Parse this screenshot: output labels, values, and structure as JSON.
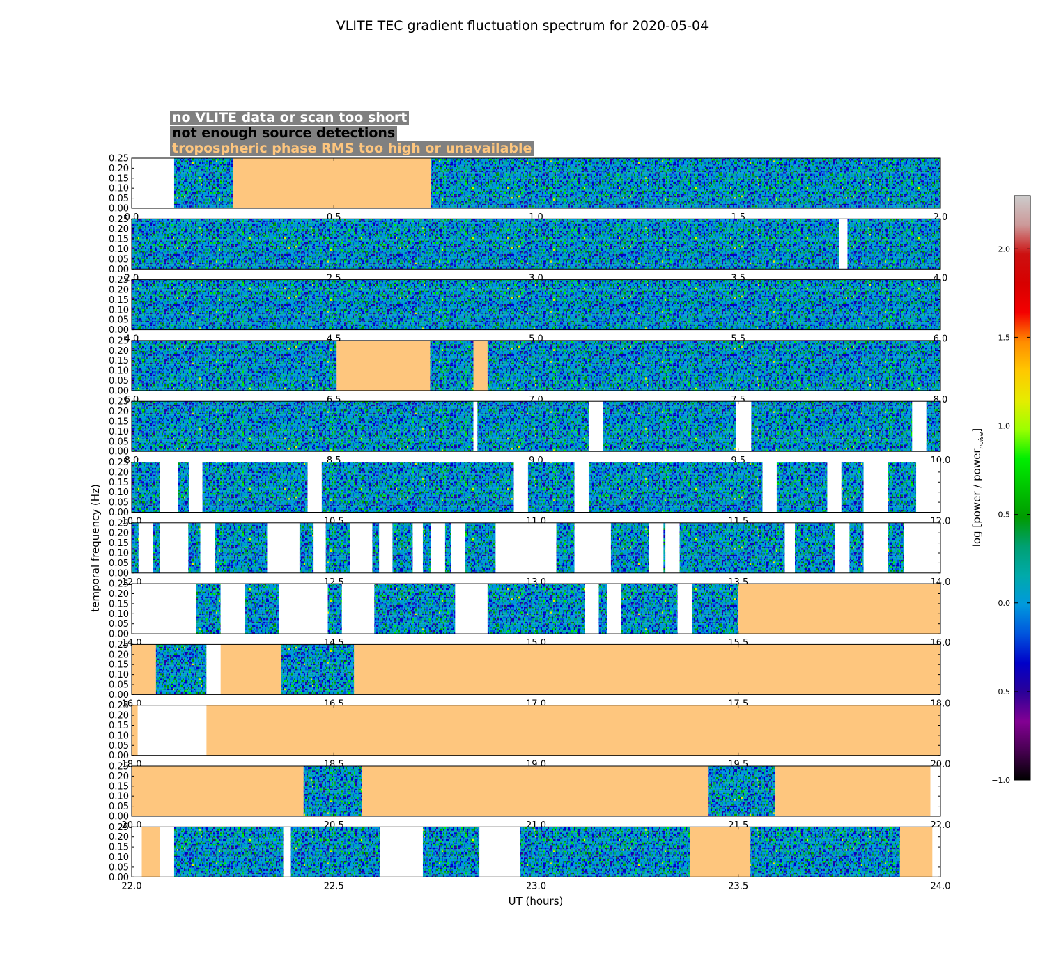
{
  "chart_data": {
    "type": "heatmap",
    "title": "VLITE TEC gradient fluctuation spectrum for 2020-05-04",
    "xlabel": "UT (hours)",
    "ylabel": "temporal frequency (Hz)",
    "ylim": [
      0,
      0.25
    ],
    "y_ticks": [
      "0.00",
      "0.05",
      "0.10",
      "0.15",
      "0.20",
      "0.25"
    ],
    "colorbar": {
      "label": "log [power / power",
      "label_subscript": "noise",
      "label_suffix": "]",
      "range": [
        -1.0,
        2.3
      ],
      "ticks": [
        "−1.0",
        "−0.5",
        "0.0",
        "0.5",
        "1.0",
        "1.5",
        "2.0"
      ],
      "colormap": "nipy_spectral"
    },
    "flag_legend": [
      {
        "label": "no VLITE data or scan too short",
        "color": "#ffffff"
      },
      {
        "label": "not enough source detections",
        "color": "#000000"
      },
      {
        "label": "tropospheric phase RMS too high or unavailable",
        "color": "#fec67e"
      }
    ],
    "panels": [
      {
        "x_range": [
          0.0,
          2.0
        ],
        "x_ticks": [
          "0.0",
          "0.5",
          "1.0",
          "1.5",
          "2.0"
        ],
        "segments": [
          [
            0.0,
            0.105,
            "nodata"
          ],
          [
            0.105,
            0.25,
            "data"
          ],
          [
            0.25,
            0.74,
            "trop"
          ],
          [
            0.74,
            2.0,
            "data"
          ]
        ]
      },
      {
        "x_range": [
          2.0,
          4.0
        ],
        "x_ticks": [
          "2.0",
          "2.5",
          "3.0",
          "3.5",
          "4.0"
        ],
        "segments": [
          [
            2.0,
            3.75,
            "data"
          ],
          [
            3.75,
            3.77,
            "nodata"
          ],
          [
            3.77,
            4.0,
            "data"
          ]
        ]
      },
      {
        "x_range": [
          4.0,
          6.0
        ],
        "x_ticks": [
          "4.0",
          "4.5",
          "5.0",
          "5.5",
          "6.0"
        ],
        "segments": [
          [
            4.0,
            6.0,
            "data"
          ]
        ]
      },
      {
        "x_range": [
          6.0,
          8.0
        ],
        "x_ticks": [
          "6.0",
          "6.5",
          "7.0",
          "7.5",
          "8.0"
        ],
        "segments": [
          [
            6.0,
            6.507,
            "data"
          ],
          [
            6.507,
            6.738,
            "trop"
          ],
          [
            6.738,
            6.845,
            "data"
          ],
          [
            6.845,
            6.88,
            "trop"
          ],
          [
            6.88,
            8.0,
            "data"
          ]
        ]
      },
      {
        "x_range": [
          8.0,
          10.0
        ],
        "x_ticks": [
          "8.0",
          "8.5",
          "9.0",
          "9.5",
          "10.0"
        ],
        "segments": [
          [
            8.0,
            8.845,
            "data"
          ],
          [
            8.845,
            8.855,
            "nodata"
          ],
          [
            8.855,
            9.13,
            "data"
          ],
          [
            9.13,
            9.165,
            "nodata"
          ],
          [
            9.165,
            9.495,
            "data"
          ],
          [
            9.495,
            9.532,
            "nodata"
          ],
          [
            9.532,
            9.93,
            "data"
          ],
          [
            9.93,
            9.965,
            "nodata"
          ],
          [
            9.965,
            10.0,
            "data"
          ]
        ]
      },
      {
        "x_range": [
          10.0,
          12.0
        ],
        "x_ticks": [
          "10.0",
          "10.5",
          "11.0",
          "11.5",
          "12.0"
        ],
        "segments": [
          [
            10.0,
            10.07,
            "data"
          ],
          [
            10.07,
            10.115,
            "nodata"
          ],
          [
            10.115,
            10.142,
            "data"
          ],
          [
            10.142,
            10.175,
            "nodata"
          ],
          [
            10.175,
            10.435,
            "data"
          ],
          [
            10.435,
            10.47,
            "nodata"
          ],
          [
            10.47,
            10.945,
            "data"
          ],
          [
            10.945,
            10.98,
            "nodata"
          ],
          [
            10.98,
            11.095,
            "data"
          ],
          [
            11.095,
            11.13,
            "nodata"
          ],
          [
            11.13,
            11.56,
            "data"
          ],
          [
            11.56,
            11.595,
            "nodata"
          ],
          [
            11.595,
            11.72,
            "data"
          ],
          [
            11.72,
            11.755,
            "nodata"
          ],
          [
            11.755,
            11.81,
            "data"
          ],
          [
            11.81,
            11.87,
            "nodata"
          ],
          [
            11.87,
            11.94,
            "data"
          ],
          [
            11.94,
            12.0,
            "nodata"
          ]
        ]
      },
      {
        "x_range": [
          12.0,
          14.0
        ],
        "x_ticks": [
          "12.0",
          "12.5",
          "13.0",
          "13.5",
          "14.0"
        ],
        "segments": [
          [
            12.0,
            12.017,
            "data"
          ],
          [
            12.017,
            12.053,
            "nodata"
          ],
          [
            12.053,
            12.07,
            "data"
          ],
          [
            12.07,
            12.14,
            "nodata"
          ],
          [
            12.14,
            12.17,
            "data"
          ],
          [
            12.17,
            12.205,
            "nodata"
          ],
          [
            12.205,
            12.335,
            "data"
          ],
          [
            12.335,
            12.415,
            "nodata"
          ],
          [
            12.415,
            12.45,
            "data"
          ],
          [
            12.45,
            12.48,
            "nodata"
          ],
          [
            12.48,
            12.54,
            "data"
          ],
          [
            12.54,
            12.595,
            "nodata"
          ],
          [
            12.595,
            12.612,
            "data"
          ],
          [
            12.612,
            12.645,
            "nodata"
          ],
          [
            12.645,
            12.695,
            "data"
          ],
          [
            12.695,
            12.72,
            "nodata"
          ],
          [
            12.72,
            12.74,
            "data"
          ],
          [
            12.74,
            12.775,
            "nodata"
          ],
          [
            12.775,
            12.79,
            "data"
          ],
          [
            12.79,
            12.825,
            "nodata"
          ],
          [
            12.825,
            12.9,
            "data"
          ],
          [
            12.9,
            13.05,
            "nodata"
          ],
          [
            13.05,
            13.095,
            "data"
          ],
          [
            13.095,
            13.185,
            "nodata"
          ],
          [
            13.185,
            13.28,
            "data"
          ],
          [
            13.28,
            13.315,
            "nodata"
          ],
          [
            13.315,
            13.32,
            "data"
          ],
          [
            13.32,
            13.355,
            "nodata"
          ],
          [
            13.355,
            13.615,
            "data"
          ],
          [
            13.615,
            13.64,
            "nodata"
          ],
          [
            13.64,
            13.74,
            "data"
          ],
          [
            13.74,
            13.775,
            "nodata"
          ],
          [
            13.775,
            13.81,
            "data"
          ],
          [
            13.81,
            13.87,
            "nodata"
          ],
          [
            13.87,
            13.91,
            "data"
          ],
          [
            13.91,
            14.0,
            "nodata"
          ]
        ]
      },
      {
        "x_range": [
          14.0,
          16.0
        ],
        "x_ticks": [
          "14.0",
          "14.5",
          "15.0",
          "15.5",
          "16.0"
        ],
        "segments": [
          [
            14.0,
            14.16,
            "nodata"
          ],
          [
            14.16,
            14.22,
            "data"
          ],
          [
            14.22,
            14.28,
            "nodata"
          ],
          [
            14.28,
            14.365,
            "data"
          ],
          [
            14.365,
            14.485,
            "nodata"
          ],
          [
            14.485,
            14.52,
            "data"
          ],
          [
            14.52,
            14.6,
            "nodata"
          ],
          [
            14.6,
            14.8,
            "data"
          ],
          [
            14.8,
            14.88,
            "nodata"
          ],
          [
            14.88,
            15.12,
            "data"
          ],
          [
            15.12,
            15.155,
            "nodata"
          ],
          [
            15.155,
            15.175,
            "data"
          ],
          [
            15.175,
            15.21,
            "nodata"
          ],
          [
            15.21,
            15.35,
            "data"
          ],
          [
            15.35,
            15.385,
            "nodata"
          ],
          [
            15.385,
            15.5,
            "data"
          ],
          [
            15.5,
            16.0,
            "trop"
          ]
        ]
      },
      {
        "x_range": [
          16.0,
          18.0
        ],
        "x_ticks": [
          "16.0",
          "16.5",
          "17.0",
          "17.5",
          "18.0"
        ],
        "segments": [
          [
            16.0,
            16.06,
            "trop"
          ],
          [
            16.06,
            16.185,
            "data"
          ],
          [
            16.185,
            16.22,
            "nodata"
          ],
          [
            16.22,
            16.37,
            "trop"
          ],
          [
            16.37,
            16.55,
            "data"
          ],
          [
            16.55,
            18.0,
            "trop"
          ]
        ]
      },
      {
        "x_range": [
          18.0,
          20.0
        ],
        "x_ticks": [
          "18.0",
          "18.5",
          "19.0",
          "19.5",
          "20.0"
        ],
        "segments": [
          [
            18.0,
            18.015,
            "trop"
          ],
          [
            18.015,
            18.185,
            "nodata"
          ],
          [
            18.185,
            20.0,
            "trop"
          ]
        ]
      },
      {
        "x_range": [
          20.0,
          22.0
        ],
        "x_ticks": [
          "20.0",
          "20.5",
          "21.0",
          "21.5",
          "22.0"
        ],
        "segments": [
          [
            20.0,
            20.425,
            "trop"
          ],
          [
            20.425,
            20.57,
            "data"
          ],
          [
            20.57,
            21.425,
            "trop"
          ],
          [
            21.425,
            21.592,
            "data"
          ],
          [
            21.592,
            21.975,
            "trop"
          ],
          [
            21.975,
            22.0,
            "nodata"
          ]
        ]
      },
      {
        "x_range": [
          22.0,
          24.0
        ],
        "x_ticks": [
          "22.0",
          "22.5",
          "23.0",
          "23.5",
          "24.0"
        ],
        "segments": [
          [
            22.0,
            22.025,
            "nodata"
          ],
          [
            22.025,
            22.07,
            "trop"
          ],
          [
            22.07,
            22.105,
            "nodata"
          ],
          [
            22.105,
            22.375,
            "data"
          ],
          [
            22.375,
            22.392,
            "nodata"
          ],
          [
            22.392,
            22.615,
            "data"
          ],
          [
            22.615,
            22.72,
            "nodata"
          ],
          [
            22.72,
            22.86,
            "data"
          ],
          [
            22.86,
            22.96,
            "nodata"
          ],
          [
            22.96,
            23.38,
            "data"
          ],
          [
            23.38,
            23.53,
            "trop"
          ],
          [
            23.53,
            23.9,
            "data"
          ],
          [
            23.9,
            23.98,
            "trop"
          ],
          [
            23.98,
            24.0,
            "nodata"
          ]
        ]
      }
    ]
  }
}
